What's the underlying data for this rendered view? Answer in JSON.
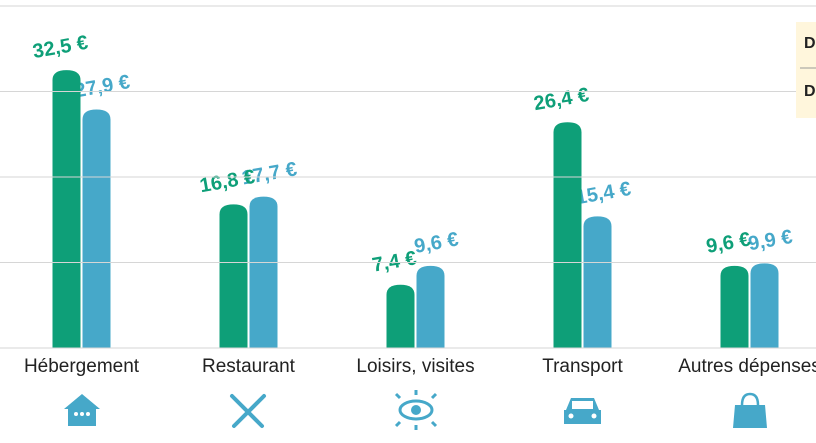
{
  "chart_data": {
    "type": "bar",
    "categories": [
      "Hébergement",
      "Restaurant",
      "Loisirs, visites",
      "Transport",
      "Autres dépenses"
    ],
    "series": [
      {
        "name": "D",
        "color": "#0e9f78",
        "values": [
          32.5,
          16.8,
          7.4,
          26.4,
          9.6
        ],
        "value_labels": [
          "32,5 €",
          "16,8 €",
          "7,4 €",
          "26,4 €",
          "9,6 €"
        ]
      },
      {
        "name": "D",
        "color": "#46a8c9",
        "values": [
          27.9,
          17.7,
          9.6,
          15.4,
          9.9
        ],
        "value_labels": [
          "27,9 €",
          "17,7 €",
          "9,6 €",
          "15,4 €",
          "9,9 €"
        ]
      }
    ],
    "ylim": [
      0,
      40
    ],
    "yticks": [
      0,
      10,
      20,
      30,
      40
    ],
    "grid": true
  }
}
